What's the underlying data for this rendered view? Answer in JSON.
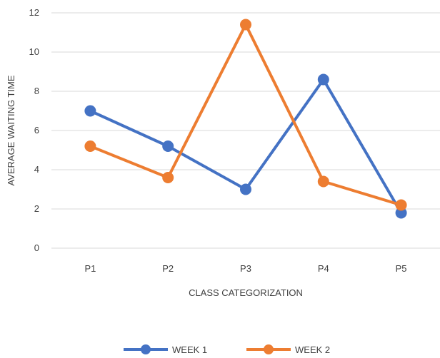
{
  "chart_data": {
    "type": "line",
    "title": "",
    "xlabel": "CLASS CATEGORIZATION",
    "ylabel": "AVERAGE WAITING TIME",
    "categories": [
      "P1",
      "P2",
      "P3",
      "P4",
      "P5"
    ],
    "ylim": [
      0,
      12
    ],
    "yticks": [
      "0",
      "2",
      "4",
      "6",
      "8",
      "10",
      "12"
    ],
    "grid": true,
    "legend_position": "bottom",
    "series": [
      {
        "name": "WEEK 1",
        "color": "#4472C4",
        "values": [
          7.0,
          5.2,
          3.0,
          8.6,
          1.8
        ]
      },
      {
        "name": "WEEK 2",
        "color": "#ED7D31",
        "values": [
          5.2,
          3.6,
          11.4,
          3.4,
          2.2
        ]
      }
    ]
  }
}
